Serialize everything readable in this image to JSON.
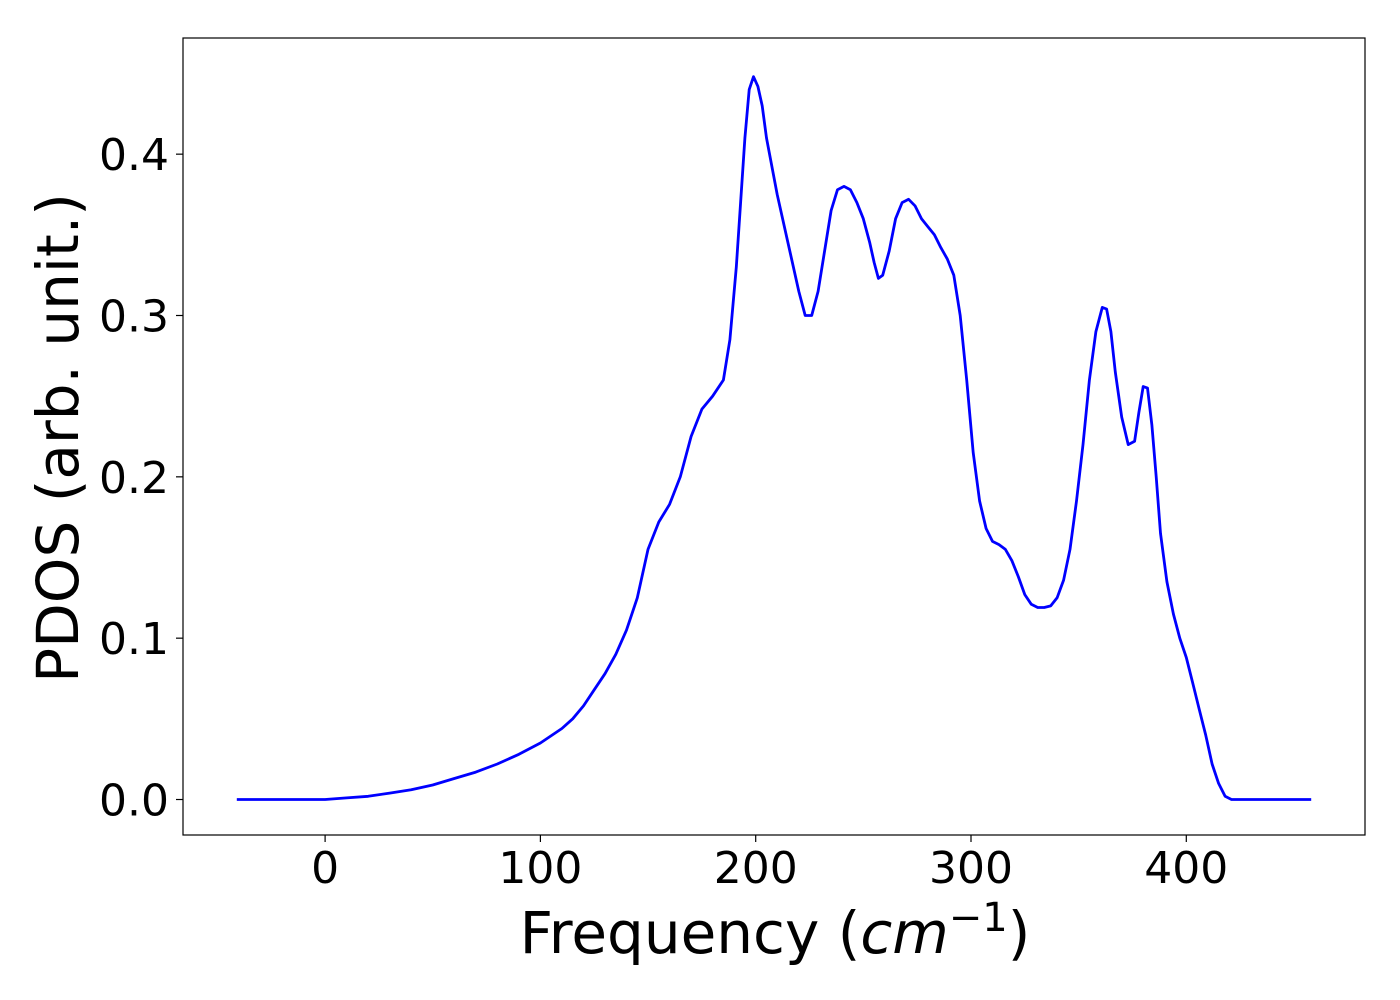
{
  "chart_data": {
    "type": "line",
    "title": "",
    "xlabel": "Frequency (",
    "xlabel_math": "cm",
    "xlabel_sup": "−1",
    "xlabel_close": ")",
    "ylabel": "PDOS (arb. unit.)",
    "xlim": [
      -66,
      483
    ],
    "ylim": [
      -0.022,
      0.472
    ],
    "xticks": [
      0,
      100,
      200,
      300,
      400
    ],
    "xtick_labels": [
      "0",
      "100",
      "200",
      "300",
      "400"
    ],
    "yticks": [
      0.0,
      0.1,
      0.2,
      0.3,
      0.4
    ],
    "ytick_labels": [
      "0.0",
      "0.1",
      "0.2",
      "0.3",
      "0.4"
    ],
    "grid": false,
    "series": [
      {
        "color": "#0000ff",
        "x": [
          -41,
          0,
          10,
          20,
          30,
          40,
          50,
          60,
          70,
          80,
          90,
          100,
          110,
          115,
          120,
          125,
          130,
          135,
          140,
          145,
          150,
          155,
          160,
          165,
          170,
          175,
          180,
          185,
          188,
          191,
          193,
          195,
          197,
          199,
          201,
          203,
          205,
          210,
          215,
          220,
          223,
          226,
          229,
          232,
          235,
          238,
          241,
          244,
          247,
          250,
          253,
          255,
          257,
          259,
          262,
          265,
          268,
          271,
          274,
          277,
          280,
          283,
          286,
          289,
          292,
          295,
          298,
          301,
          304,
          307,
          310,
          313,
          316,
          319,
          322,
          325,
          328,
          331,
          334,
          337,
          340,
          343,
          346,
          349,
          352,
          355,
          358,
          361,
          363,
          365,
          367,
          370,
          373,
          376,
          378,
          380,
          382,
          384,
          386,
          388,
          391,
          394,
          397,
          400,
          403,
          406,
          409,
          412,
          415,
          418,
          421,
          424,
          427,
          430,
          440,
          458
        ],
        "values": [
          0.0,
          0.0,
          0.001,
          0.002,
          0.004,
          0.006,
          0.009,
          0.013,
          0.017,
          0.022,
          0.028,
          0.035,
          0.044,
          0.05,
          0.058,
          0.068,
          0.078,
          0.09,
          0.105,
          0.125,
          0.155,
          0.172,
          0.183,
          0.2,
          0.225,
          0.242,
          0.25,
          0.26,
          0.285,
          0.33,
          0.37,
          0.41,
          0.44,
          0.448,
          0.442,
          0.43,
          0.41,
          0.375,
          0.345,
          0.315,
          0.3,
          0.3,
          0.315,
          0.34,
          0.365,
          0.378,
          0.38,
          0.378,
          0.37,
          0.36,
          0.345,
          0.333,
          0.323,
          0.325,
          0.34,
          0.36,
          0.37,
          0.372,
          0.368,
          0.36,
          0.355,
          0.35,
          0.342,
          0.335,
          0.325,
          0.3,
          0.26,
          0.215,
          0.185,
          0.168,
          0.16,
          0.158,
          0.155,
          0.148,
          0.138,
          0.127,
          0.121,
          0.119,
          0.119,
          0.12,
          0.125,
          0.136,
          0.155,
          0.185,
          0.22,
          0.26,
          0.29,
          0.305,
          0.304,
          0.29,
          0.265,
          0.237,
          0.22,
          0.222,
          0.24,
          0.256,
          0.255,
          0.232,
          0.2,
          0.165,
          0.135,
          0.115,
          0.1,
          0.088,
          0.072,
          0.056,
          0.04,
          0.022,
          0.01,
          0.002,
          0.0,
          0.0,
          0.0,
          0.0,
          0.0,
          0.0
        ]
      }
    ]
  }
}
